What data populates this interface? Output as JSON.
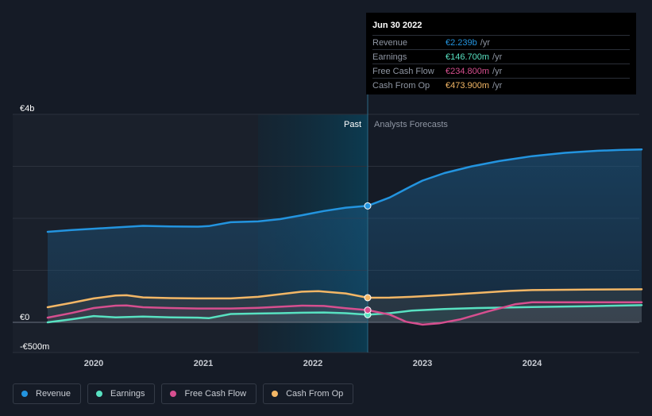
{
  "chart_data": {
    "type": "line",
    "title": "",
    "y_unit_labels": [
      "€4b",
      "€0",
      "-€500m"
    ],
    "y_label_values": [
      4000,
      0,
      -500
    ],
    "ylim": [
      -500,
      4000
    ],
    "gridlines": [
      -500,
      0,
      1000,
      2000,
      3000,
      4000
    ],
    "x_ticks": [
      "2020",
      "2021",
      "2022",
      "2023",
      "2024"
    ],
    "x_tick_values": [
      2020,
      2021,
      2022,
      2023,
      2024
    ],
    "xlim": [
      2019.35,
      2025.0
    ],
    "forecast_region_start": 2021.5,
    "divider_x": 2022.5,
    "past_label": "Past",
    "forecast_label": "Analysts Forecasts",
    "series": [
      {
        "name": "Revenue",
        "color": "#2394df",
        "points": [
          [
            2019.58,
            1740
          ],
          [
            2019.8,
            1775
          ],
          [
            2020.0,
            1800
          ],
          [
            2020.2,
            1825
          ],
          [
            2020.45,
            1855
          ],
          [
            2020.7,
            1845
          ],
          [
            2020.95,
            1840
          ],
          [
            2021.05,
            1850
          ],
          [
            2021.25,
            1925
          ],
          [
            2021.5,
            1940
          ],
          [
            2021.7,
            1985
          ],
          [
            2021.9,
            2060
          ],
          [
            2022.1,
            2140
          ],
          [
            2022.3,
            2205
          ],
          [
            2022.5,
            2239
          ],
          [
            2022.7,
            2400
          ],
          [
            2022.9,
            2620
          ],
          [
            2023.0,
            2725
          ],
          [
            2023.2,
            2870
          ],
          [
            2023.45,
            3000
          ],
          [
            2023.7,
            3100
          ],
          [
            2024.0,
            3195
          ],
          [
            2024.3,
            3260
          ],
          [
            2024.6,
            3300
          ],
          [
            2024.8,
            3315
          ],
          [
            2025.0,
            3325
          ]
        ]
      },
      {
        "name": "Earnings",
        "color": "#58e1c1",
        "points": [
          [
            2019.58,
            0
          ],
          [
            2019.8,
            60
          ],
          [
            2020.0,
            120
          ],
          [
            2020.2,
            95
          ],
          [
            2020.45,
            110
          ],
          [
            2020.7,
            95
          ],
          [
            2020.95,
            90
          ],
          [
            2021.05,
            80
          ],
          [
            2021.25,
            160
          ],
          [
            2021.5,
            170
          ],
          [
            2021.7,
            175
          ],
          [
            2021.9,
            185
          ],
          [
            2022.1,
            190
          ],
          [
            2022.3,
            175
          ],
          [
            2022.5,
            147
          ],
          [
            2022.7,
            175
          ],
          [
            2022.9,
            225
          ],
          [
            2023.2,
            255
          ],
          [
            2023.5,
            275
          ],
          [
            2023.8,
            285
          ],
          [
            2024.0,
            295
          ],
          [
            2024.5,
            310
          ],
          [
            2025.0,
            330
          ]
        ]
      },
      {
        "name": "Free Cash Flow",
        "color": "#d64f8f",
        "points": [
          [
            2019.58,
            90
          ],
          [
            2019.8,
            180
          ],
          [
            2020.0,
            275
          ],
          [
            2020.2,
            320
          ],
          [
            2020.3,
            325
          ],
          [
            2020.45,
            290
          ],
          [
            2020.7,
            275
          ],
          [
            2020.95,
            265
          ],
          [
            2021.25,
            265
          ],
          [
            2021.5,
            280
          ],
          [
            2021.7,
            300
          ],
          [
            2021.9,
            320
          ],
          [
            2022.1,
            315
          ],
          [
            2022.3,
            270
          ],
          [
            2022.5,
            235
          ],
          [
            2022.7,
            150
          ],
          [
            2022.85,
            10
          ],
          [
            2023.0,
            -45
          ],
          [
            2023.15,
            -20
          ],
          [
            2023.35,
            60
          ],
          [
            2023.6,
            210
          ],
          [
            2023.85,
            350
          ],
          [
            2024.0,
            385
          ],
          [
            2024.5,
            385
          ],
          [
            2025.0,
            385
          ]
        ]
      },
      {
        "name": "Cash From Op",
        "color": "#f3b766",
        "points": [
          [
            2019.58,
            290
          ],
          [
            2019.8,
            375
          ],
          [
            2020.0,
            460
          ],
          [
            2020.2,
            515
          ],
          [
            2020.3,
            520
          ],
          [
            2020.45,
            480
          ],
          [
            2020.7,
            465
          ],
          [
            2020.95,
            460
          ],
          [
            2021.25,
            460
          ],
          [
            2021.5,
            490
          ],
          [
            2021.7,
            540
          ],
          [
            2021.9,
            590
          ],
          [
            2022.05,
            600
          ],
          [
            2022.3,
            555
          ],
          [
            2022.5,
            474
          ],
          [
            2022.7,
            475
          ],
          [
            2022.9,
            490
          ],
          [
            2023.2,
            525
          ],
          [
            2023.5,
            565
          ],
          [
            2023.8,
            605
          ],
          [
            2024.0,
            620
          ],
          [
            2024.5,
            630
          ],
          [
            2025.0,
            635
          ]
        ]
      }
    ]
  },
  "tooltip": {
    "date": "Jun 30 2022",
    "rows": [
      {
        "label": "Revenue",
        "value": "€2.239b",
        "unit": "/yr",
        "color": "#2394df"
      },
      {
        "label": "Earnings",
        "value": "€146.700m",
        "unit": "/yr",
        "color": "#58e1c1"
      },
      {
        "label": "Free Cash Flow",
        "value": "€234.800m",
        "unit": "/yr",
        "color": "#d64f8f"
      },
      {
        "label": "Cash From Op",
        "value": "€473.900m",
        "unit": "/yr",
        "color": "#f3b766"
      }
    ]
  },
  "legend": [
    {
      "label": "Revenue",
      "color": "#2394df"
    },
    {
      "label": "Earnings",
      "color": "#58e1c1"
    },
    {
      "label": "Free Cash Flow",
      "color": "#d64f8f"
    },
    {
      "label": "Cash From Op",
      "color": "#f3b766"
    }
  ]
}
